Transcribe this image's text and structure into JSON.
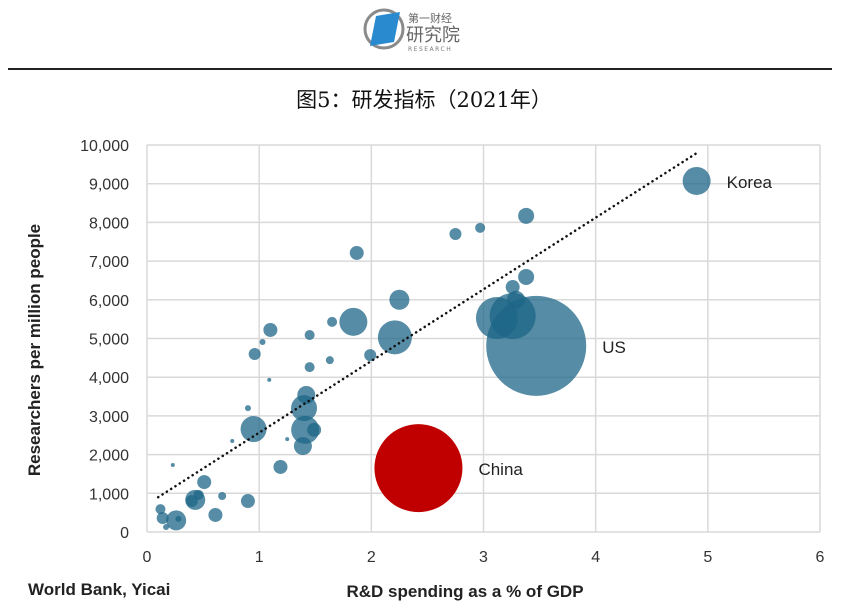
{
  "logo": {
    "line1": "第一财经",
    "line2": "研究院",
    "line3": "RESEARCH"
  },
  "title": "图5：研发指标（2021年）",
  "source": "World Bank, Yicai",
  "colors": {
    "bubble": "#1d6587",
    "china": "#c00000",
    "grid": "#d9d9d9",
    "trend": "#111111"
  },
  "chart_data": {
    "type": "scatter",
    "subtype": "bubble",
    "xlabel": "R&D spending as a % of GDP",
    "ylabel": "Researchers per million people",
    "xlim": [
      0,
      6
    ],
    "ylim": [
      0,
      10000
    ],
    "xticks": [
      "0",
      "1",
      "2",
      "3",
      "4",
      "5",
      "6"
    ],
    "yticks": [
      "0",
      "1,000",
      "2,000",
      "3,000",
      "4,000",
      "5,000",
      "6,000",
      "7,000",
      "8,000",
      "9,000",
      "10,000"
    ],
    "grid": true,
    "trendline": {
      "style": "dotted",
      "from": [
        0.1,
        900
      ],
      "to": [
        4.9,
        9790
      ]
    },
    "points": [
      {
        "x": 4.9,
        "y": 9070,
        "size": 14,
        "label": "Korea"
      },
      {
        "x": 3.47,
        "y": 4810,
        "size": 50,
        "label": "US"
      },
      {
        "x": 2.42,
        "y": 1650,
        "size": 44,
        "label": "China",
        "highlight": true
      },
      {
        "x": 3.12,
        "y": 5530,
        "size": 21
      },
      {
        "x": 3.26,
        "y": 5580,
        "size": 23
      },
      {
        "x": 3.26,
        "y": 6330,
        "size": 7
      },
      {
        "x": 3.29,
        "y": 6000,
        "size": 9
      },
      {
        "x": 3.38,
        "y": 6590,
        "size": 8
      },
      {
        "x": 3.38,
        "y": 8170,
        "size": 8
      },
      {
        "x": 2.97,
        "y": 7860,
        "size": 5
      },
      {
        "x": 2.75,
        "y": 7700,
        "size": 6
      },
      {
        "x": 1.87,
        "y": 7210,
        "size": 7
      },
      {
        "x": 2.25,
        "y": 6000,
        "size": 10
      },
      {
        "x": 2.21,
        "y": 5030,
        "size": 17
      },
      {
        "x": 1.84,
        "y": 5430,
        "size": 14
      },
      {
        "x": 1.99,
        "y": 4570,
        "size": 6
      },
      {
        "x": 1.65,
        "y": 5430,
        "size": 5
      },
      {
        "x": 1.63,
        "y": 4440,
        "size": 4
      },
      {
        "x": 1.45,
        "y": 5090,
        "size": 5
      },
      {
        "x": 1.45,
        "y": 4260,
        "size": 5
      },
      {
        "x": 1.1,
        "y": 5220,
        "size": 7
      },
      {
        "x": 0.96,
        "y": 4600,
        "size": 6
      },
      {
        "x": 1.03,
        "y": 4910,
        "size": 3
      },
      {
        "x": 1.09,
        "y": 3930,
        "size": 2
      },
      {
        "x": 1.42,
        "y": 3540,
        "size": 9
      },
      {
        "x": 1.4,
        "y": 3200,
        "size": 13
      },
      {
        "x": 1.41,
        "y": 2640,
        "size": 14
      },
      {
        "x": 1.49,
        "y": 2640,
        "size": 7
      },
      {
        "x": 1.39,
        "y": 2220,
        "size": 9
      },
      {
        "x": 0.95,
        "y": 2660,
        "size": 13
      },
      {
        "x": 0.9,
        "y": 3200,
        "size": 3
      },
      {
        "x": 0.76,
        "y": 2350,
        "size": 2
      },
      {
        "x": 1.25,
        "y": 2400,
        "size": 2
      },
      {
        "x": 1.19,
        "y": 1680,
        "size": 7
      },
      {
        "x": 0.23,
        "y": 1730,
        "size": 2
      },
      {
        "x": 0.51,
        "y": 1290,
        "size": 7
      },
      {
        "x": 0.67,
        "y": 930,
        "size": 4
      },
      {
        "x": 0.9,
        "y": 800,
        "size": 7
      },
      {
        "x": 0.43,
        "y": 830,
        "size": 10
      },
      {
        "x": 0.46,
        "y": 960,
        "size": 5
      },
      {
        "x": 0.4,
        "y": 800,
        "size": 6
      },
      {
        "x": 0.61,
        "y": 440,
        "size": 7
      },
      {
        "x": 0.26,
        "y": 300,
        "size": 10
      },
      {
        "x": 0.12,
        "y": 590,
        "size": 5
      },
      {
        "x": 0.14,
        "y": 360,
        "size": 6
      },
      {
        "x": 0.17,
        "y": 130,
        "size": 3
      },
      {
        "x": 0.28,
        "y": 340,
        "size": 3
      }
    ]
  }
}
